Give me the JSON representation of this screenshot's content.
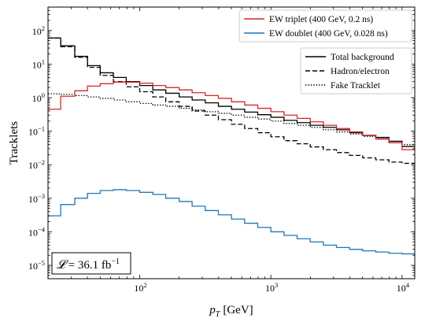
{
  "chart_data": {
    "type": "line",
    "drawstyle": "steps",
    "xscale": "log",
    "yscale": "log",
    "xlim": [
      20,
      12500
    ],
    "ylim": [
      4e-06,
      500
    ],
    "xlabel_main": "p",
    "xlabel_sub": "T",
    "xlabel_unit": "[GeV]",
    "ylabel": "Tracklets",
    "x_ticks": [
      {
        "value": 100,
        "base": "10",
        "exp": "2"
      },
      {
        "value": 1000,
        "base": "10",
        "exp": "3"
      },
      {
        "value": 10000,
        "base": "10",
        "exp": "4"
      }
    ],
    "y_ticks": [
      {
        "value": 1e-05,
        "base": "10",
        "exp": "−5"
      },
      {
        "value": 0.0001,
        "base": "10",
        "exp": "−4"
      },
      {
        "value": 0.001,
        "base": "10",
        "exp": "−3"
      },
      {
        "value": 0.01,
        "base": "10",
        "exp": "−2"
      },
      {
        "value": 0.1,
        "base": "10",
        "exp": "−1"
      },
      {
        "value": 1,
        "base": "10",
        "exp": "0"
      },
      {
        "value": 10,
        "base": "10",
        "exp": "1"
      },
      {
        "value": 100,
        "base": "10",
        "exp": "2"
      }
    ],
    "bin_edges": [
      20,
      25,
      32,
      40,
      50,
      63,
      79,
      100,
      126,
      158,
      200,
      251,
      316,
      398,
      501,
      631,
      794,
      1000,
      1259,
      1585,
      1995,
      2512,
      3162,
      3981,
      5012,
      6310,
      7943,
      10000,
      12589
    ],
    "series": [
      {
        "name": "EW triplet (400 GeV, 0.2 ns)",
        "color": "#d62728",
        "dash": "solid",
        "group": "signal",
        "values": [
          0.45,
          1.1,
          1.6,
          2.2,
          2.6,
          2.9,
          2.9,
          2.7,
          2.3,
          2.0,
          1.7,
          1.4,
          1.15,
          0.95,
          0.75,
          0.6,
          0.48,
          0.38,
          0.3,
          0.24,
          0.19,
          0.15,
          0.12,
          0.095,
          0.075,
          0.058,
          0.045,
          0.028
        ]
      },
      {
        "name": "EW doublet (400 GeV, 0.028 ns)",
        "color": "#1f77b4",
        "dash": "solid",
        "group": "signal",
        "values": [
          0.0003,
          0.00065,
          0.001,
          0.0014,
          0.0017,
          0.0018,
          0.0017,
          0.0015,
          0.0013,
          0.001,
          0.0008,
          0.00058,
          0.00043,
          0.00032,
          0.00024,
          0.00018,
          0.000135,
          0.0001,
          7.8e-05,
          6.2e-05,
          5e-05,
          4e-05,
          3.4e-05,
          3e-05,
          2.7e-05,
          2.5e-05,
          2.3e-05,
          2.2e-05
        ]
      },
      {
        "name": "Total background",
        "color": "#000000",
        "dash": "solid",
        "group": "background",
        "values": [
          60,
          35,
          17,
          9.0,
          5.5,
          4.0,
          3.0,
          2.3,
          1.7,
          1.35,
          1.05,
          0.85,
          0.7,
          0.55,
          0.45,
          0.37,
          0.31,
          0.26,
          0.21,
          0.18,
          0.15,
          0.13,
          0.11,
          0.09,
          0.075,
          0.065,
          0.05,
          0.035
        ]
      },
      {
        "name": "Hadron/electron",
        "color": "#000000",
        "dash": "dashed",
        "group": "background",
        "values": [
          60,
          33,
          16,
          8.0,
          4.6,
          3.0,
          2.1,
          1.5,
          1.05,
          0.75,
          0.55,
          0.4,
          0.3,
          0.22,
          0.16,
          0.12,
          0.09,
          0.068,
          0.052,
          0.042,
          0.034,
          0.028,
          0.023,
          0.019,
          0.016,
          0.014,
          0.012,
          0.011
        ]
      },
      {
        "name": "Fake Tracklet",
        "color": "#000000",
        "dash": "dotted",
        "group": "background",
        "values": [
          1.3,
          1.25,
          1.15,
          1.05,
          0.95,
          0.85,
          0.75,
          0.67,
          0.6,
          0.55,
          0.48,
          0.43,
          0.38,
          0.34,
          0.3,
          0.26,
          0.23,
          0.2,
          0.17,
          0.15,
          0.13,
          0.11,
          0.095,
          0.082,
          0.07,
          0.06,
          0.045,
          0.04
        ]
      }
    ],
    "legend_placement": "top-right",
    "annotation": {
      "lhs": "𝓛",
      "eq": " = 36.1 fb",
      "exp": "−1",
      "placement": "bottom-left"
    }
  }
}
